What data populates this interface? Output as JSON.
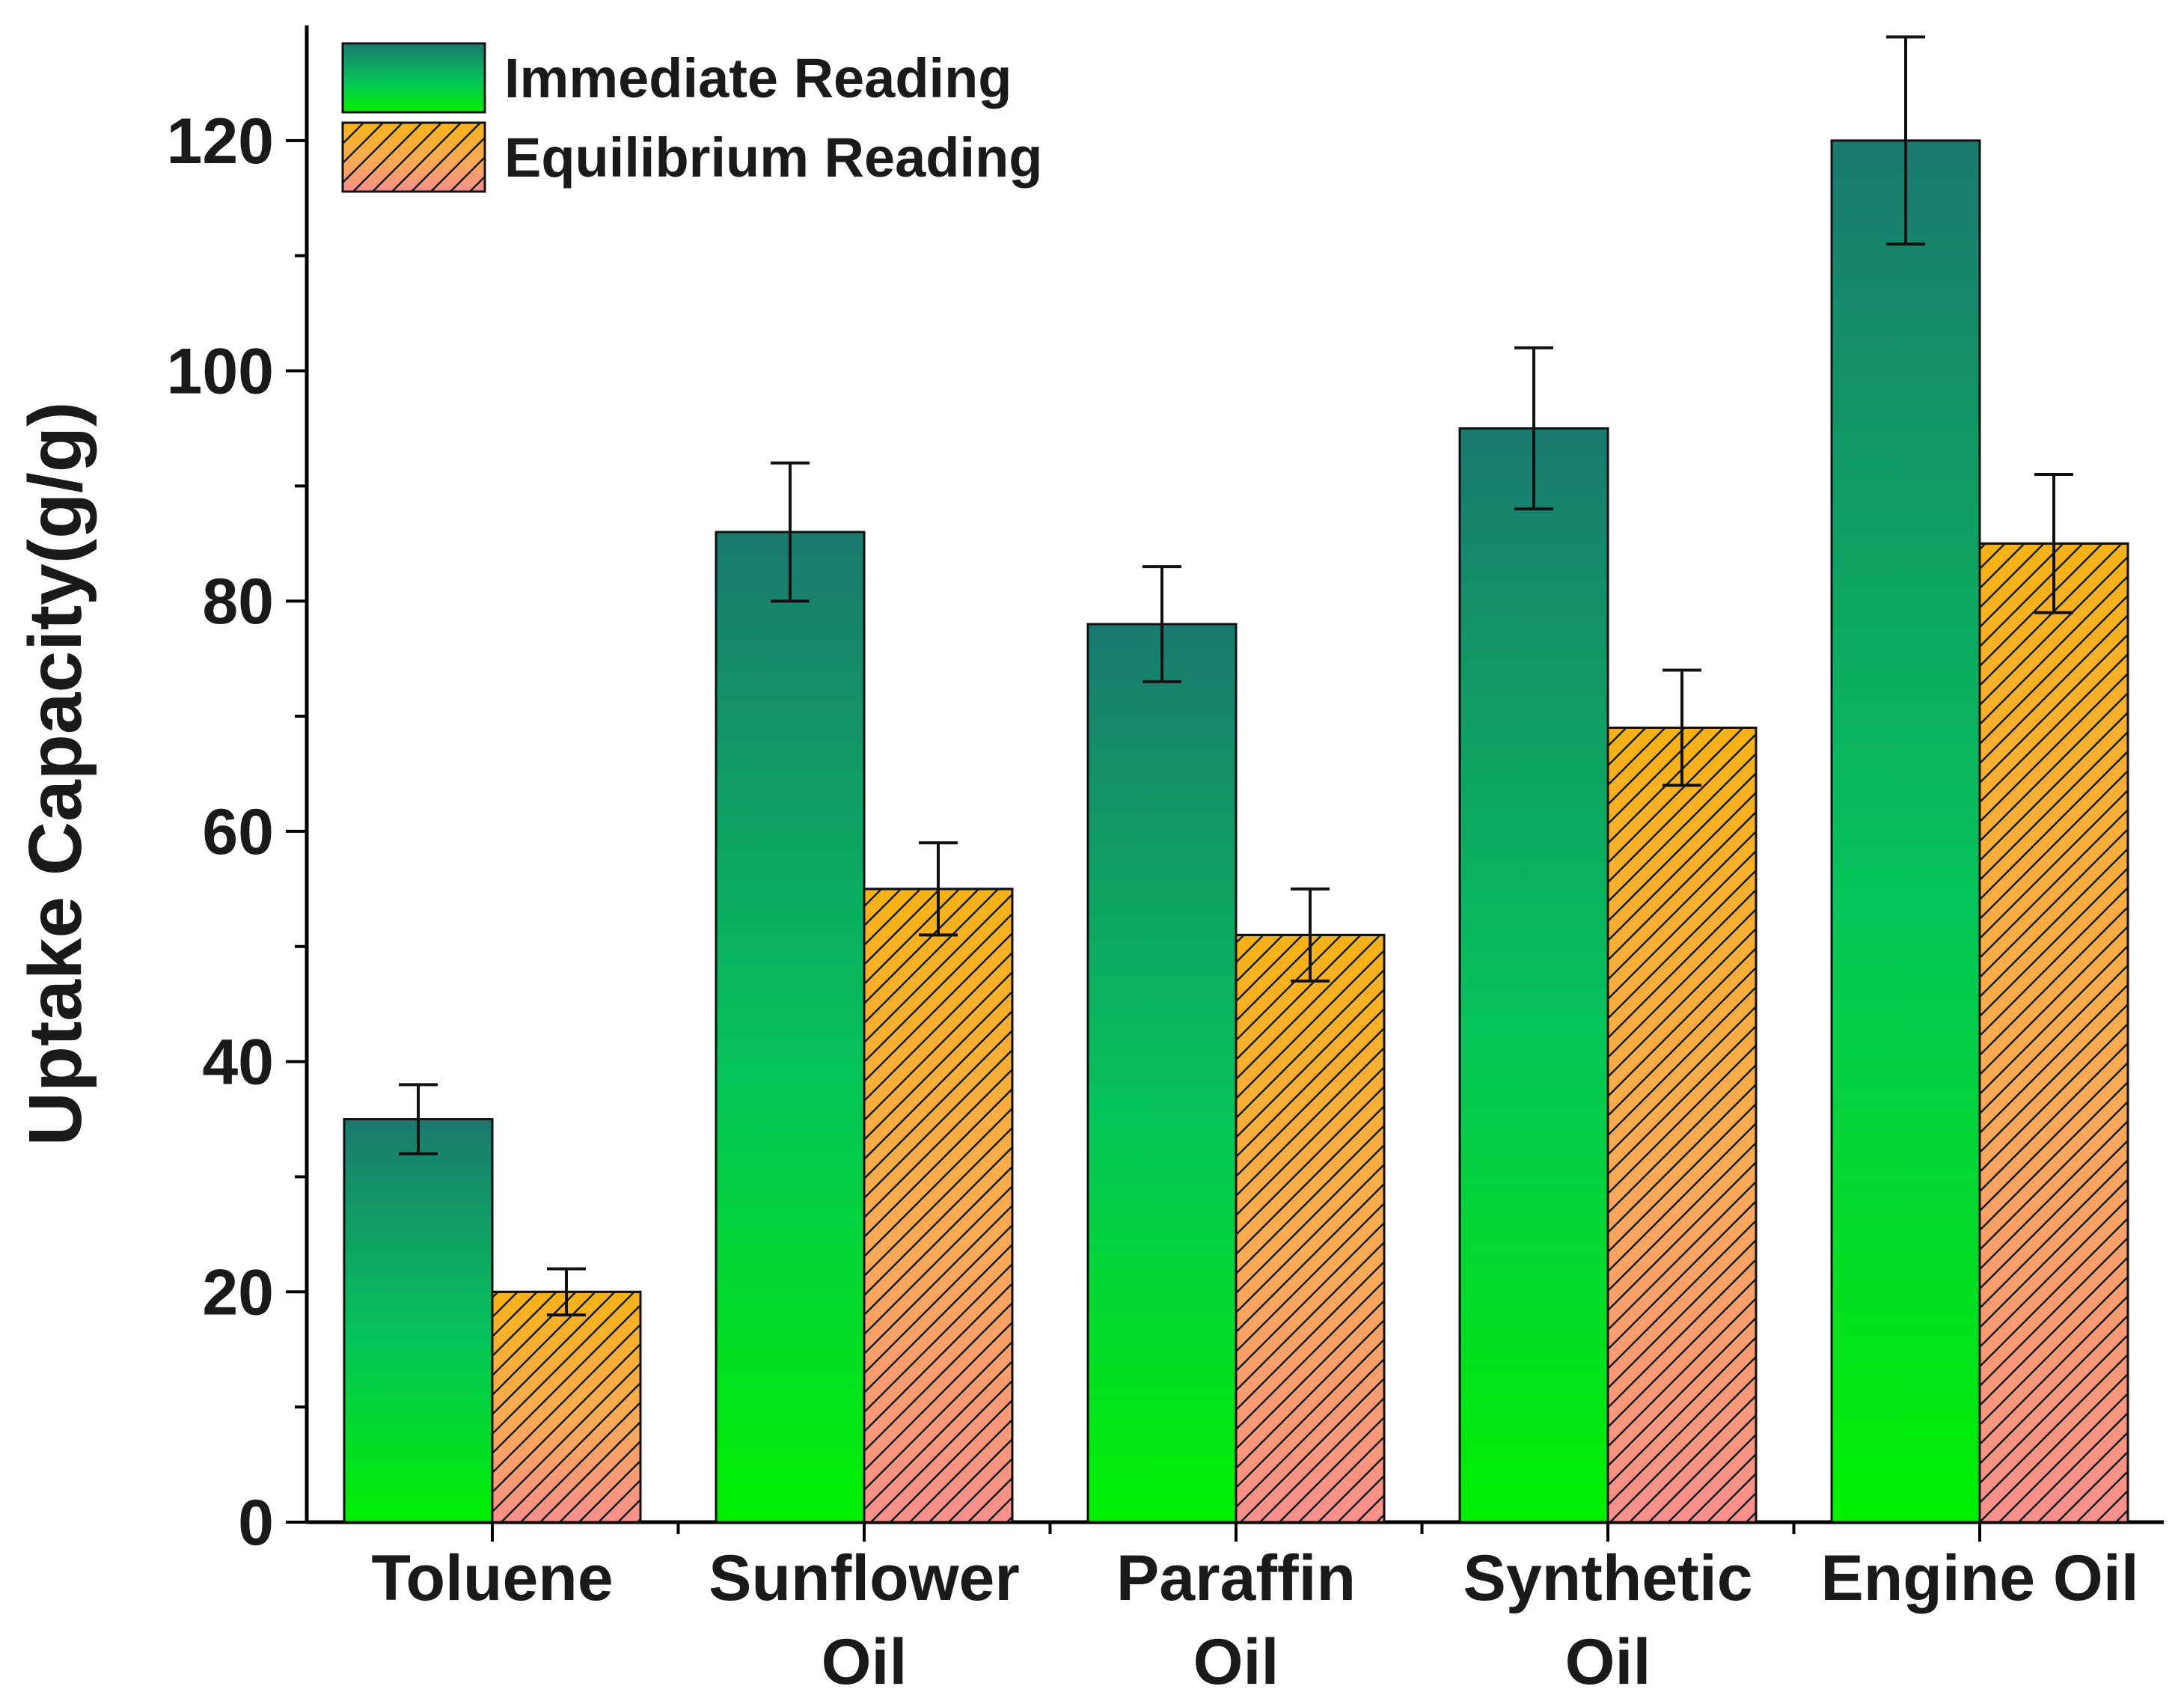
{
  "chart_data": {
    "type": "bar",
    "title": "",
    "xlabel": "",
    "ylabel": "Uptake Capacity(g/g)",
    "ylim": [
      0,
      130
    ],
    "yticks": [
      0,
      20,
      40,
      60,
      80,
      100,
      120
    ],
    "grid": false,
    "legend_position": "top-left",
    "categories": [
      [
        "Toluene"
      ],
      [
        "Sunflower",
        "Oil"
      ],
      [
        "Paraffin",
        "Oil"
      ],
      [
        "Synthetic",
        "Oil"
      ],
      [
        "Engine Oil"
      ]
    ],
    "series": [
      {
        "name": "Immediate Reading",
        "values": [
          35,
          86,
          78,
          95,
          120
        ],
        "error_low": [
          32,
          80,
          73,
          88,
          111
        ],
        "error_high": [
          38,
          92,
          83,
          102,
          129
        ],
        "fill": "vertical gradient",
        "colors": {
          "top": "#1a7a6e",
          "bottom": "#00f000"
        }
      },
      {
        "name": "Equilibrium Reading",
        "values": [
          20,
          55,
          51,
          69,
          85
        ],
        "error_low": [
          18,
          51,
          47,
          64,
          79
        ],
        "error_high": [
          22,
          59,
          55,
          74,
          91
        ],
        "fill": "vertical gradient with diagonal hatch",
        "colors": {
          "top": "#f7b218",
          "bottom": "#f98f8c",
          "hatch": "#1a1a1a"
        }
      }
    ]
  }
}
